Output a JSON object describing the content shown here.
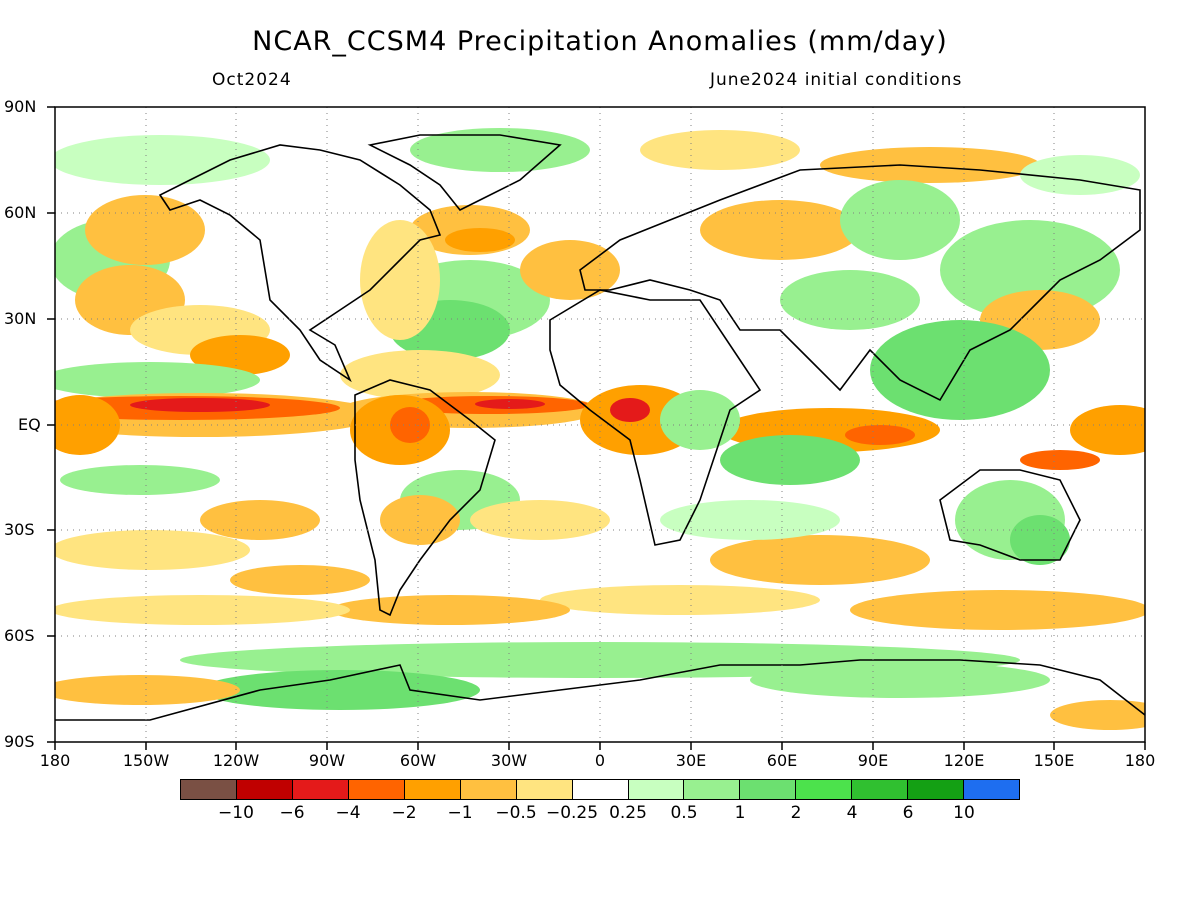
{
  "title": "NCAR_CCSM4 Precipitation Anomalies (mm/day)",
  "subtitle_left": "Oct2024",
  "subtitle_right": "June2024 initial conditions",
  "lat_labels": [
    "90N",
    "60N",
    "30N",
    "EQ",
    "30S",
    "60S",
    "90S"
  ],
  "lon_labels": [
    "180",
    "150W",
    "120W",
    "90W",
    "60W",
    "30W",
    "0",
    "30E",
    "60E",
    "90E",
    "120E",
    "150E",
    "180"
  ],
  "colorbar": {
    "colors": [
      "#7a5044",
      "#c00000",
      "#e41a1a",
      "#ff6400",
      "#ffa000",
      "#ffc040",
      "#ffe480",
      "#ffffff",
      "#c8ffc0",
      "#98f090",
      "#6ce070",
      "#4ce24c",
      "#30c030",
      "#14a014",
      "#1e6ef0"
    ],
    "labels": [
      "−10",
      "−6",
      "−4",
      "−2",
      "−1",
      "−0.5",
      "−0.25",
      "0.25",
      "0.5",
      "1",
      "2",
      "4",
      "6",
      "10"
    ]
  },
  "anomaly_colors": {
    "orange_strong": "#ff6400",
    "orange": "#ffa000",
    "orange_light": "#ffc040",
    "yellow": "#ffe480",
    "green_light": "#c8ffc0",
    "green": "#98f090",
    "green_mid": "#6ce070",
    "red": "#e41a1a"
  }
}
